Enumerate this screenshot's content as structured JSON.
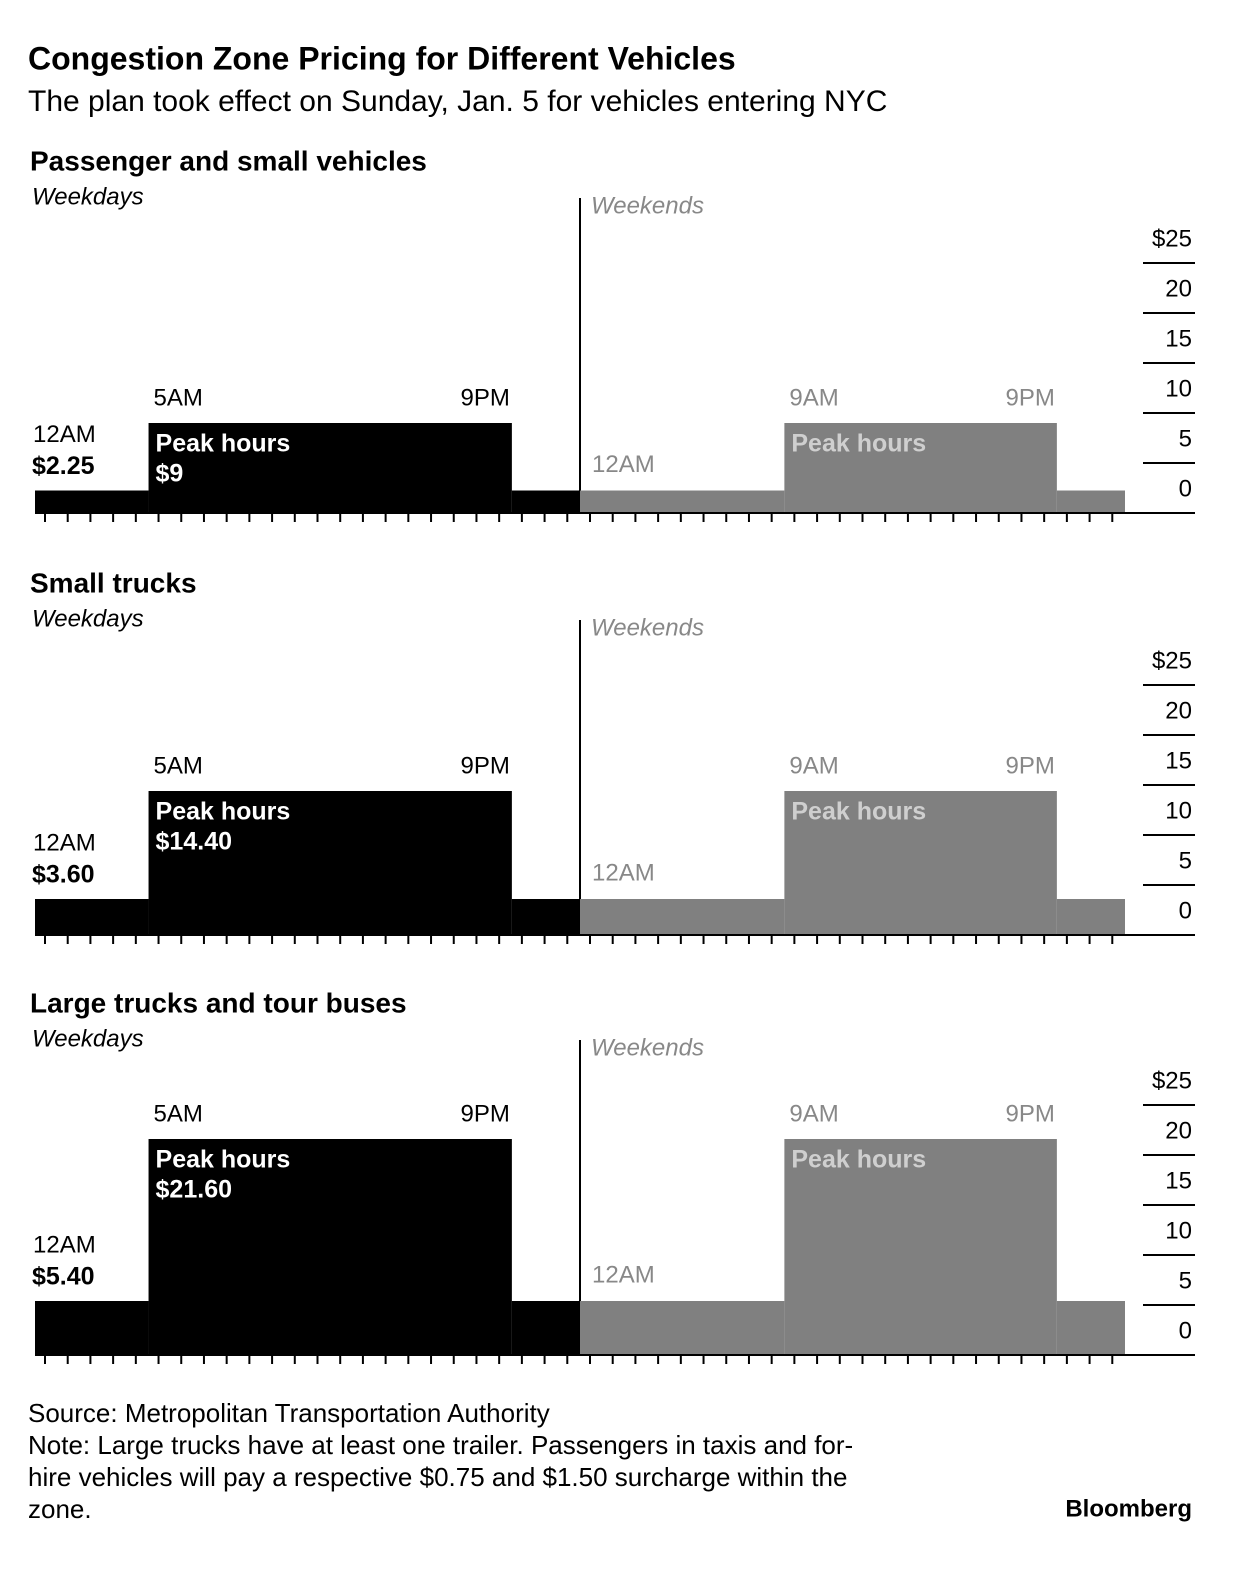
{
  "title": "Congestion Zone Pricing for Different Vehicles",
  "subtitle": "The plan took effect on Sunday, Jan. 5 for vehicles entering NYC",
  "source": "Source: Metropolitan Transportation Authority",
  "note": [
    "Note: Large trucks have at least one trailer. Passengers in taxis and for-",
    "hire vehicles will pay a respective $0.75 and $1.50 surcharge within the",
    "zone."
  ],
  "brand": "Bloomberg",
  "chart_data": [
    {
      "type": "step",
      "title": "Passenger and small vehicles",
      "xlim": [
        0,
        48
      ],
      "ylim": [
        0,
        25
      ],
      "yticks": [
        0,
        5,
        10,
        15,
        20,
        {
          "value": 25,
          "label": "$25"
        }
      ],
      "xticks": [
        0,
        1,
        2,
        3,
        4,
        5,
        6,
        7,
        8,
        9,
        10,
        11,
        12,
        13,
        14,
        15,
        16,
        17,
        18,
        19,
        20,
        21,
        22,
        23,
        24,
        25,
        26,
        27,
        28,
        29,
        30,
        31,
        32,
        33,
        34,
        35,
        36,
        37,
        38,
        39,
        40,
        41,
        42,
        43,
        44,
        45,
        46,
        47,
        48
      ],
      "grid": false,
      "series": [
        {
          "name": "Weekdays",
          "color": "#000000",
          "bins": [
            0,
            5,
            21,
            24
          ],
          "values": [
            2.25,
            9,
            2.25
          ],
          "value_labels": [
            "$2.25",
            "$9",
            null
          ],
          "bin_labels": [
            "12AM",
            "5AM",
            "9PM"
          ],
          "peak_label": "Peak hours"
        },
        {
          "name": "Weekends",
          "color": "#808080",
          "bins": [
            24,
            33,
            45,
            48
          ],
          "values": [
            2.25,
            9,
            2.25
          ],
          "bin_labels": [
            "12AM",
            "9AM",
            "9PM"
          ],
          "peak_label": "Peak hours"
        }
      ]
    },
    {
      "type": "step",
      "title": "Small trucks",
      "xlim": [
        0,
        48
      ],
      "ylim": [
        0,
        25
      ],
      "yticks": [
        0,
        5,
        10,
        15,
        20,
        {
          "value": 25,
          "label": "$25"
        }
      ],
      "xticks": [
        0,
        1,
        2,
        3,
        4,
        5,
        6,
        7,
        8,
        9,
        10,
        11,
        12,
        13,
        14,
        15,
        16,
        17,
        18,
        19,
        20,
        21,
        22,
        23,
        24,
        25,
        26,
        27,
        28,
        29,
        30,
        31,
        32,
        33,
        34,
        35,
        36,
        37,
        38,
        39,
        40,
        41,
        42,
        43,
        44,
        45,
        46,
        47,
        48
      ],
      "grid": false,
      "series": [
        {
          "name": "Weekdays",
          "color": "#000000",
          "bins": [
            0,
            5,
            21,
            24
          ],
          "values": [
            3.6,
            14.4,
            3.6
          ],
          "value_labels": [
            "$3.60",
            "$14.40",
            null
          ],
          "bin_labels": [
            "12AM",
            "5AM",
            "9PM"
          ],
          "peak_label": "Peak hours"
        },
        {
          "name": "Weekends",
          "color": "#808080",
          "bins": [
            24,
            33,
            45,
            48
          ],
          "values": [
            3.6,
            14.4,
            3.6
          ],
          "bin_labels": [
            "12AM",
            "9AM",
            "9PM"
          ],
          "peak_label": "Peak hours"
        }
      ]
    },
    {
      "type": "step",
      "title": "Large trucks and tour buses",
      "xlim": [
        0,
        48
      ],
      "ylim": [
        0,
        25
      ],
      "yticks": [
        0,
        5,
        10,
        15,
        20,
        {
          "value": 25,
          "label": "$25"
        }
      ],
      "xticks": [
        0,
        1,
        2,
        3,
        4,
        5,
        6,
        7,
        8,
        9,
        10,
        11,
        12,
        13,
        14,
        15,
        16,
        17,
        18,
        19,
        20,
        21,
        22,
        23,
        24,
        25,
        26,
        27,
        28,
        29,
        30,
        31,
        32,
        33,
        34,
        35,
        36,
        37,
        38,
        39,
        40,
        41,
        42,
        43,
        44,
        45,
        46,
        47,
        48
      ],
      "grid": false,
      "series": [
        {
          "name": "Weekdays",
          "color": "#000000",
          "bins": [
            0,
            5,
            21,
            24
          ],
          "values": [
            5.4,
            21.6,
            5.4
          ],
          "value_labels": [
            "$5.40",
            "$21.60",
            null
          ],
          "bin_labels": [
            "12AM",
            "5AM",
            "9PM"
          ],
          "peak_label": "Peak hours"
        },
        {
          "name": "Weekends",
          "color": "#808080",
          "bins": [
            24,
            33,
            45,
            48
          ],
          "values": [
            5.4,
            21.6,
            5.4
          ],
          "bin_labels": [
            "12AM",
            "9AM",
            "9PM"
          ],
          "peak_label": "Peak hours"
        }
      ]
    }
  ]
}
